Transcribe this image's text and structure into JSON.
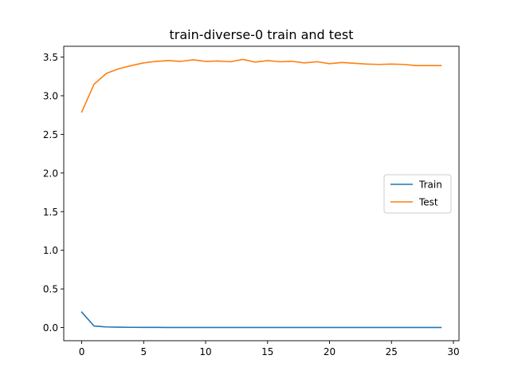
{
  "chart_data": {
    "type": "line",
    "title": "train-diverse-0 train and test",
    "xlabel": "",
    "ylabel": "",
    "xlim": [
      -1.45,
      30.45
    ],
    "ylim": [
      -0.17,
      3.64
    ],
    "xticks": [
      0,
      5,
      10,
      15,
      20,
      25,
      30
    ],
    "yticks": [
      0.0,
      0.5,
      1.0,
      1.5,
      2.0,
      2.5,
      3.0,
      3.5
    ],
    "grid": false,
    "legend": "center-right",
    "x": [
      0,
      1,
      2,
      3,
      4,
      5,
      6,
      7,
      8,
      9,
      10,
      11,
      12,
      13,
      14,
      15,
      16,
      17,
      18,
      19,
      20,
      21,
      22,
      23,
      24,
      25,
      26,
      27,
      28,
      29
    ],
    "series": [
      {
        "name": "Train",
        "color": "#1f77b4",
        "values": [
          0.2,
          0.02,
          0.008,
          0.005,
          0.003,
          0.002,
          0.002,
          0.001,
          0.001,
          0.001,
          0.001,
          0.001,
          0.001,
          0.001,
          0.001,
          0.001,
          0.001,
          0.001,
          0.001,
          0.001,
          0.001,
          0.001,
          0.001,
          0.001,
          0.001,
          0.001,
          0.001,
          0.001,
          0.001,
          0.001
        ]
      },
      {
        "name": "Test",
        "color": "#ff7f0e",
        "values": [
          2.79,
          3.15,
          3.29,
          3.35,
          3.39,
          3.425,
          3.445,
          3.455,
          3.445,
          3.465,
          3.445,
          3.45,
          3.44,
          3.47,
          3.435,
          3.455,
          3.44,
          3.445,
          3.425,
          3.44,
          3.415,
          3.43,
          3.42,
          3.41,
          3.405,
          3.41,
          3.405,
          3.39,
          3.39,
          3.39
        ]
      }
    ]
  }
}
